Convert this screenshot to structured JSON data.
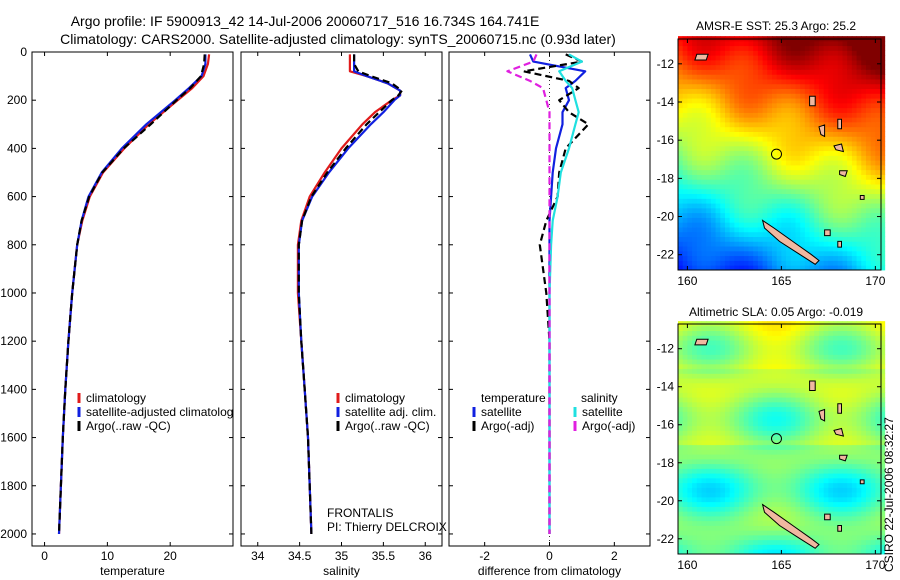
{
  "title": {
    "line1": "Argo profile: IF 5900913_42 14-Jul-2006 20060717_516 16.734S 164.741E",
    "line2": "Climatology: CARS2000. Satellite-adjusted climatology: synTS_20060715.nc (0.93d later)"
  },
  "footer_stamp": "CSIRO 22-Jul-2006 08:32:27",
  "colors": {
    "climatology": "#e01b1b",
    "satellite": "#1020e0",
    "argo": "#000000",
    "satellite_salinity": "#20e0e0",
    "argo_salinity_adj": "#e020e0"
  },
  "chart_data": [
    {
      "type": "line",
      "id": "temperature",
      "xlabel": "temperature",
      "xlim": [
        -2,
        30
      ],
      "xticks": [
        0,
        10,
        20
      ],
      "ylim": [
        0,
        2050
      ],
      "yinvert": true,
      "yticks": [
        0,
        200,
        400,
        600,
        800,
        1000,
        1200,
        1400,
        1600,
        1800,
        2000
      ],
      "legend": [
        "climatology",
        "satellite-adjusted climatology",
        "Argo(..raw -QC)"
      ],
      "depth": [
        10,
        50,
        100,
        150,
        200,
        300,
        400,
        500,
        600,
        700,
        800,
        1000,
        1200,
        1400,
        1600,
        1800,
        2000
      ],
      "series": [
        {
          "name": "climatology",
          "values": [
            26.2,
            26.0,
            25.3,
            23.5,
            21.2,
            16.6,
            12.7,
            9.3,
            7.2,
            6.0,
            5.2,
            4.4,
            3.8,
            3.3,
            2.9,
            2.6,
            2.3
          ]
        },
        {
          "name": "satellite-adjusted climatology",
          "values": [
            25.6,
            25.6,
            25.0,
            23.0,
            20.8,
            16.2,
            12.3,
            9.1,
            7.0,
            5.9,
            5.2,
            4.4,
            3.8,
            3.3,
            2.9,
            2.6,
            2.3
          ]
        },
        {
          "name": "Argo(..raw -QC)",
          "values": [
            25.5,
            25.4,
            24.9,
            23.2,
            21.0,
            16.9,
            12.6,
            9.2,
            7.1,
            5.9,
            5.2,
            4.4,
            3.8,
            3.3,
            2.9,
            2.6,
            2.3
          ]
        }
      ]
    },
    {
      "type": "line",
      "id": "salinity",
      "xlabel": "salinity",
      "xlim": [
        33.8,
        36.2
      ],
      "xticks": [
        34,
        34.5,
        35,
        35.5,
        36
      ],
      "ylim": [
        0,
        2050
      ],
      "yinvert": true,
      "legend": [
        "climatology",
        "satellite adj. clim.",
        "Argo(..raw -QC)"
      ],
      "annotation_lines": [
        "FRONTALIS",
        "PI: Thierry DELCROIX"
      ],
      "depth": [
        10,
        50,
        80,
        100,
        130,
        160,
        180,
        200,
        250,
        300,
        400,
        500,
        600,
        700,
        800,
        1000,
        1200,
        1400,
        1600,
        1800,
        2000
      ],
      "series": [
        {
          "name": "climatology",
          "values": [
            35.1,
            35.1,
            35.1,
            35.3,
            35.55,
            35.7,
            35.7,
            35.6,
            35.4,
            35.25,
            35.0,
            34.8,
            34.62,
            34.52,
            34.48,
            34.48,
            34.52,
            34.56,
            34.6,
            34.62,
            34.64
          ]
        },
        {
          "name": "satellite adj. clim.",
          "values": [
            35.15,
            35.15,
            35.15,
            35.3,
            35.55,
            35.7,
            35.7,
            35.63,
            35.5,
            35.35,
            35.08,
            34.85,
            34.65,
            34.53,
            34.49,
            34.49,
            34.52,
            34.56,
            34.6,
            34.62,
            34.64
          ]
        },
        {
          "name": "Argo(..raw -QC)",
          "values": [
            35.15,
            35.15,
            35.2,
            35.35,
            35.6,
            35.72,
            35.68,
            35.6,
            35.45,
            35.3,
            35.05,
            34.83,
            34.64,
            34.53,
            34.49,
            34.49,
            34.52,
            34.56,
            34.6,
            34.62,
            34.64
          ]
        }
      ]
    },
    {
      "type": "line",
      "id": "difference",
      "xlabel": "difference from climatology",
      "xlim": [
        -3.1,
        3.1
      ],
      "xticks": [
        -2,
        0,
        2
      ],
      "ylim": [
        0,
        2050
      ],
      "yinvert": true,
      "legend": [
        "temperature",
        "satellite",
        "Argo(-adj)",
        "salinity",
        "satellite",
        "Argo(-adj)"
      ],
      "depth": [
        10,
        40,
        80,
        120,
        150,
        200,
        250,
        300,
        400,
        500,
        600,
        700,
        800,
        1000,
        1200,
        1400,
        1600,
        1800,
        2000
      ],
      "series": [
        {
          "name": "temperature satellite",
          "values": [
            -0.6,
            -0.5,
            1.1,
            0.8,
            0.5,
            0.6,
            0.4,
            0.4,
            0.2,
            0.1,
            0.05,
            0,
            0,
            0,
            0,
            0,
            0,
            0,
            0
          ]
        },
        {
          "name": "temperature Argo(-adj)",
          "values": [
            0.5,
            1.0,
            -0.8,
            0.6,
            0.9,
            0.3,
            0.6,
            1.2,
            0.5,
            0.3,
            0.25,
            -0.1,
            -0.3,
            -0.1,
            0,
            0,
            0,
            0,
            0
          ]
        },
        {
          "name": "salinity satellite",
          "values": [
            0.6,
            1.0,
            0.3,
            0.5,
            0.7,
            0.8,
            0.9,
            0.8,
            0.6,
            0.35,
            0.25,
            0.1,
            0.05,
            0,
            0,
            0,
            0,
            0,
            0
          ]
        },
        {
          "name": "salinity Argo(-adj)",
          "values": [
            -0.4,
            -0.5,
            -1.3,
            -0.6,
            -0.2,
            -0.1,
            0,
            0,
            0,
            0,
            0,
            0,
            0,
            0,
            0,
            0,
            0,
            0,
            0
          ]
        }
      ]
    },
    {
      "type": "heatmap",
      "id": "sst-map",
      "title": "AMSR-E SST: 25.3 Argo: 25.2",
      "xlim": [
        159.5,
        170.3
      ],
      "ylim": [
        -22.8,
        -10.7
      ],
      "xticks": [
        160,
        165,
        170
      ],
      "yticks": [
        -12,
        -14,
        -16,
        -18,
        -20,
        -22
      ],
      "marker": [
        164.74,
        -16.73
      ],
      "palette": "jet"
    },
    {
      "type": "heatmap",
      "id": "sla-map",
      "title": "Altimetric SLA: 0.05 Argo: -0.019",
      "xlim": [
        159.5,
        170.3
      ],
      "ylim": [
        -22.8,
        -10.7
      ],
      "xticks": [
        160,
        165,
        170
      ],
      "yticks": [
        -12,
        -14,
        -16,
        -18,
        -20,
        -22
      ],
      "marker": [
        164.74,
        -16.73
      ],
      "palette": "jet"
    }
  ]
}
